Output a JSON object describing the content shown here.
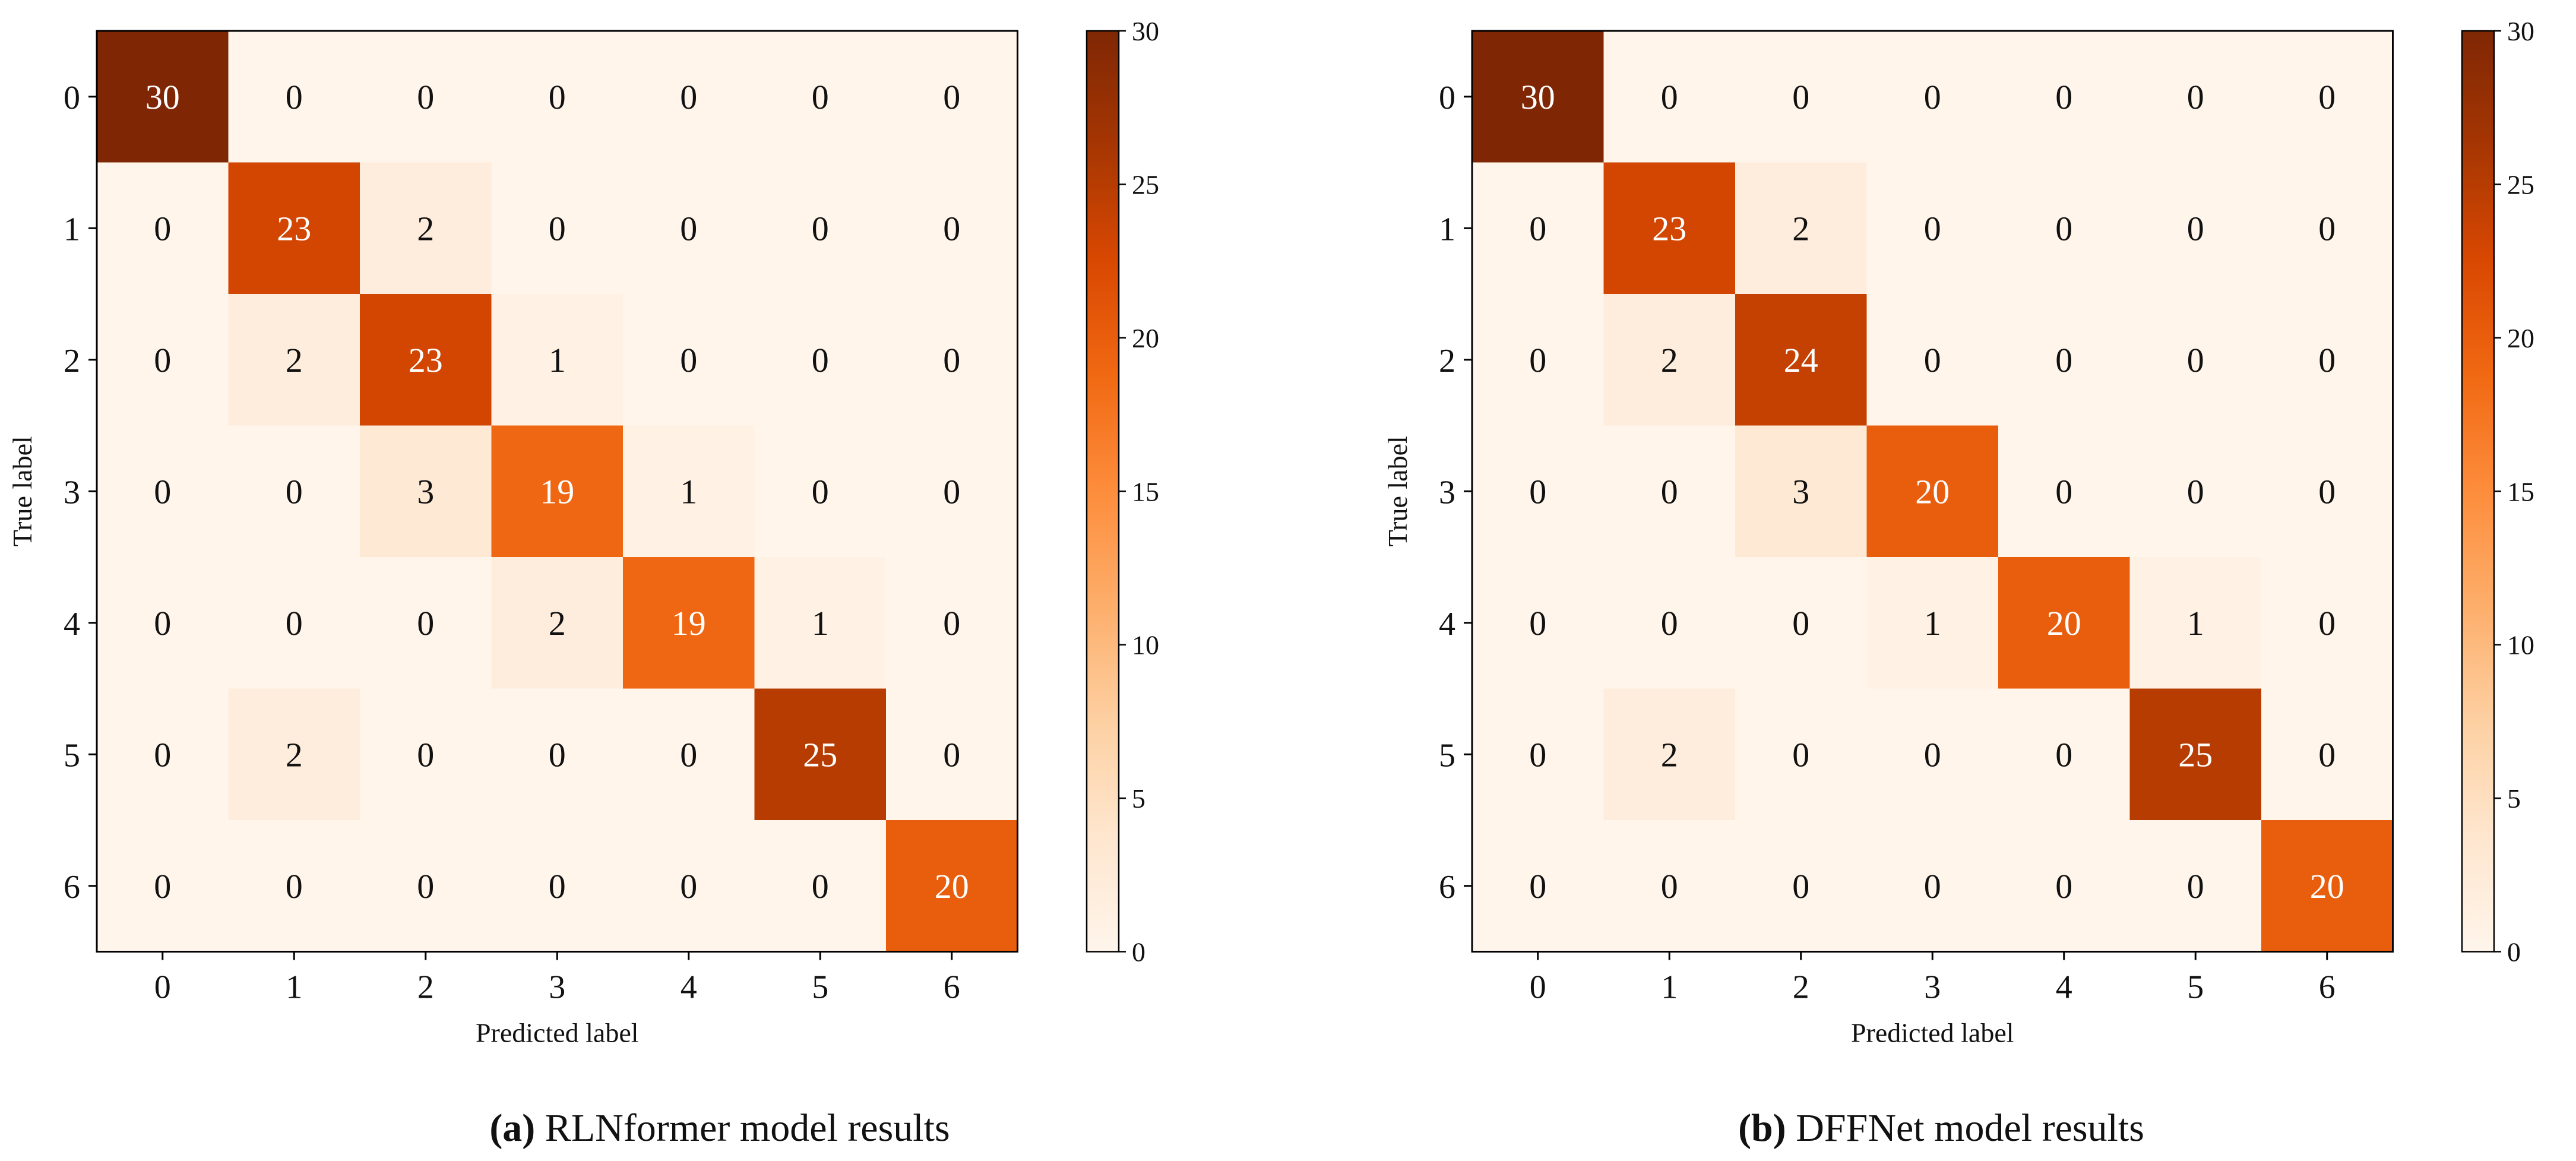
{
  "chart_data": [
    {
      "type": "heatmap",
      "labels": [
        "0",
        "1",
        "2",
        "3",
        "4",
        "5",
        "6"
      ],
      "xlabel": "Predicted label",
      "ylabel": "True label",
      "matrix": [
        [
          30,
          0,
          0,
          0,
          0,
          0,
          0
        ],
        [
          0,
          23,
          2,
          0,
          0,
          0,
          0
        ],
        [
          0,
          2,
          23,
          1,
          0,
          0,
          0
        ],
        [
          0,
          0,
          3,
          19,
          1,
          0,
          0
        ],
        [
          0,
          0,
          0,
          2,
          19,
          1,
          0
        ],
        [
          0,
          2,
          0,
          0,
          0,
          25,
          0
        ],
        [
          0,
          0,
          0,
          0,
          0,
          0,
          20
        ]
      ],
      "colorbar": {
        "min": 0,
        "max": 30,
        "ticks": [
          0,
          5,
          10,
          15,
          20,
          25,
          30
        ],
        "colormap": "Oranges"
      },
      "caption_letter": "(a)",
      "caption_text": " RLNformer model results"
    },
    {
      "type": "heatmap",
      "labels": [
        "0",
        "1",
        "2",
        "3",
        "4",
        "5",
        "6"
      ],
      "xlabel": "Predicted label",
      "ylabel": "True label",
      "matrix": [
        [
          30,
          0,
          0,
          0,
          0,
          0,
          0
        ],
        [
          0,
          23,
          2,
          0,
          0,
          0,
          0
        ],
        [
          0,
          2,
          24,
          0,
          0,
          0,
          0
        ],
        [
          0,
          0,
          3,
          20,
          0,
          0,
          0
        ],
        [
          0,
          0,
          0,
          1,
          20,
          1,
          0
        ],
        [
          0,
          2,
          0,
          0,
          0,
          25,
          0
        ],
        [
          0,
          0,
          0,
          0,
          0,
          0,
          20
        ]
      ],
      "colorbar": {
        "min": 0,
        "max": 30,
        "ticks": [
          0,
          5,
          10,
          15,
          20,
          25,
          30
        ],
        "colormap": "Oranges"
      },
      "caption_letter": "(b)",
      "caption_text": " DFFNet model results"
    }
  ]
}
